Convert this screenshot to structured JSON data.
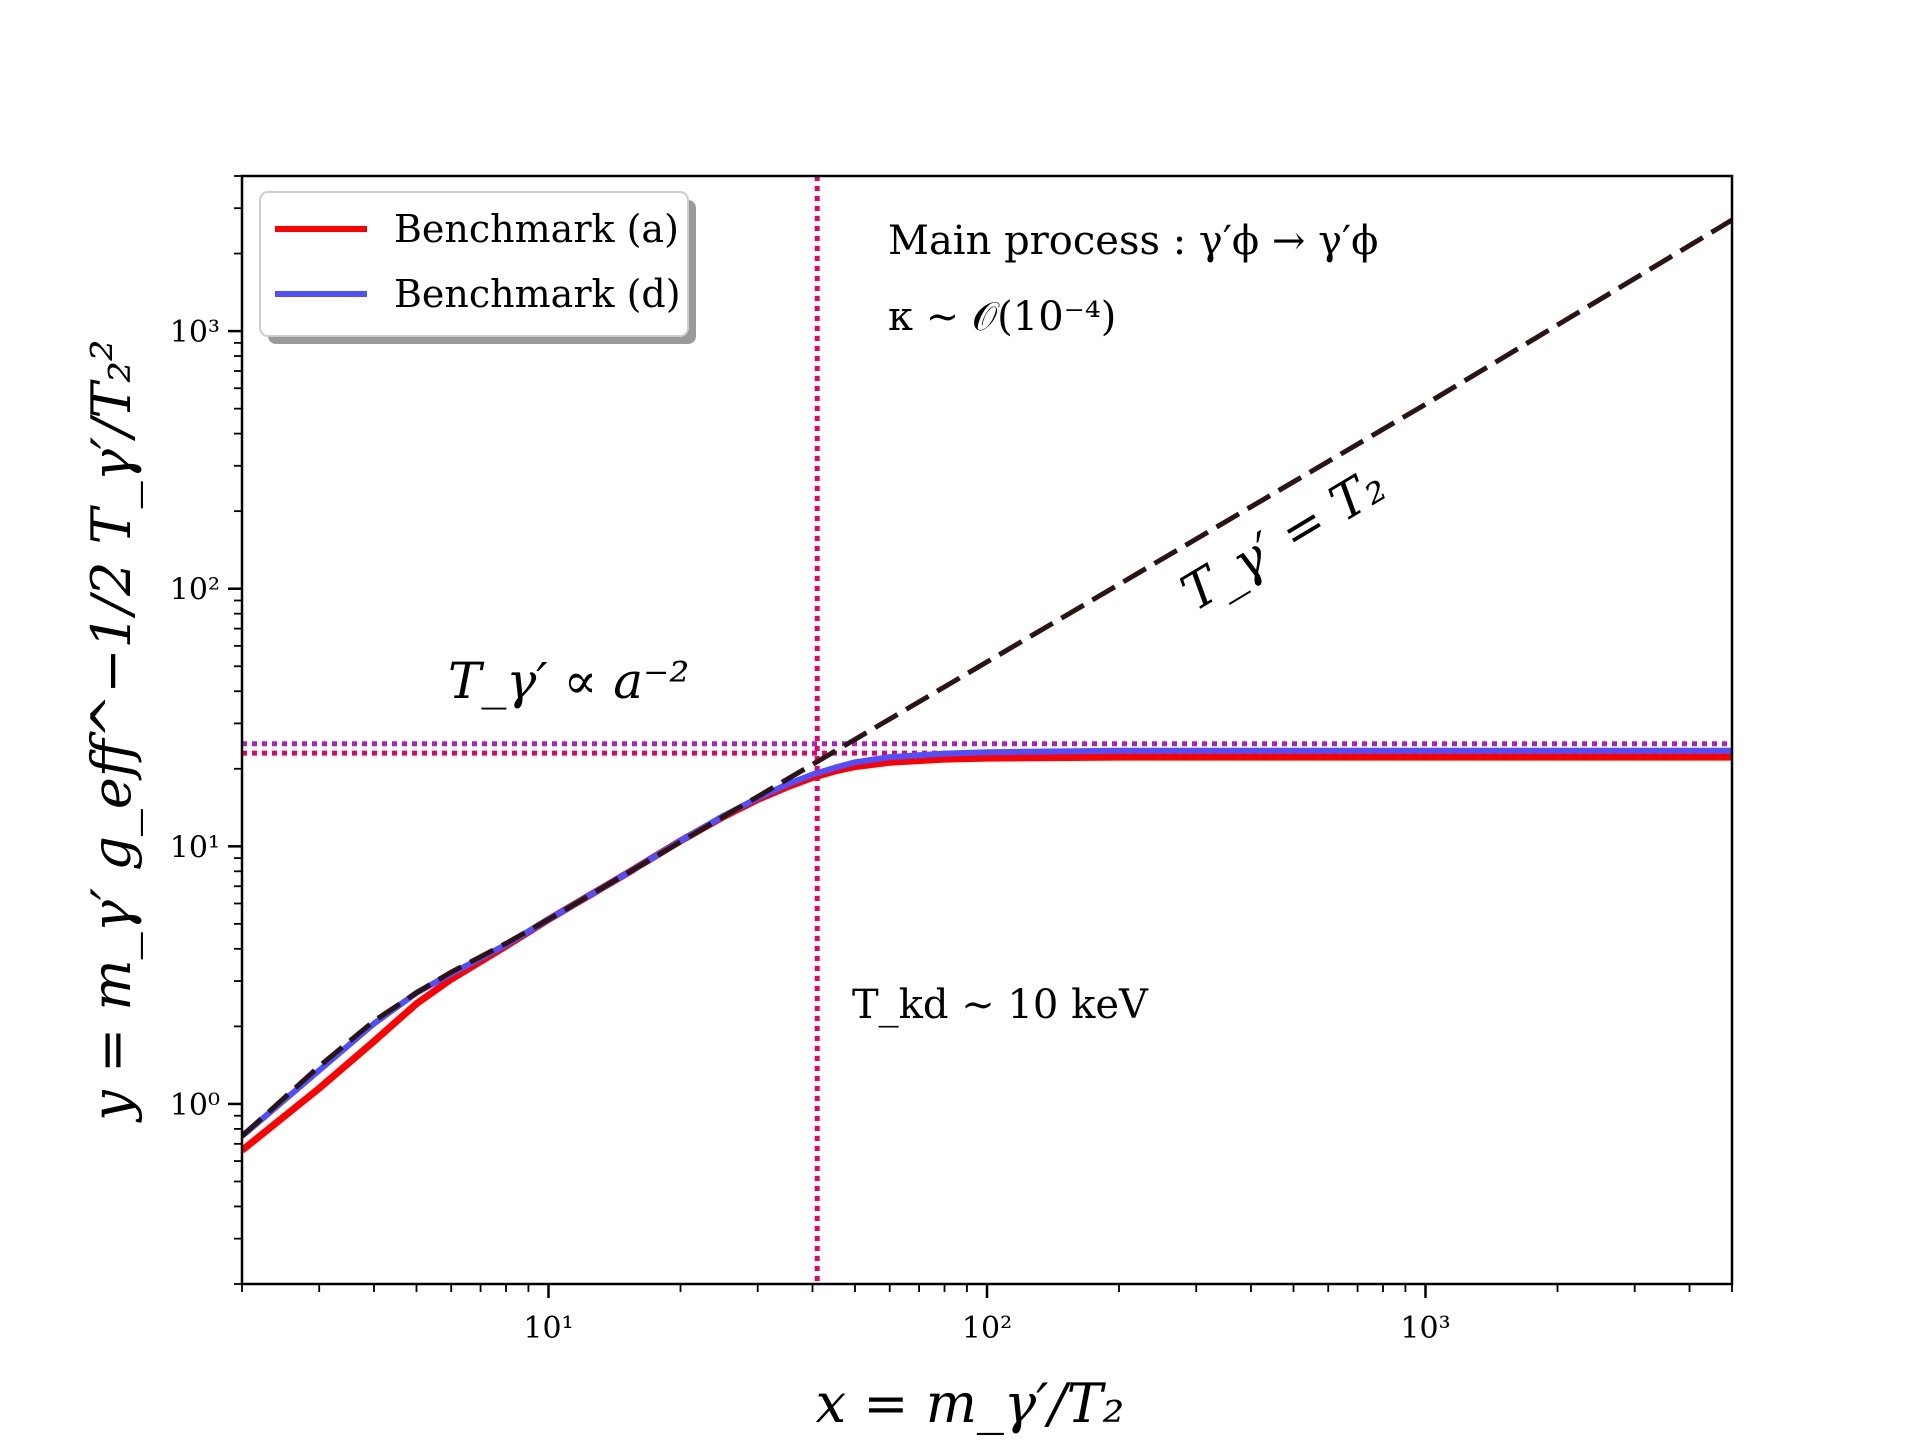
{
  "chart_data": {
    "type": "line",
    "x_scale": "log",
    "y_scale": "log",
    "xlim": [
      2,
      5000
    ],
    "ylim": [
      0.2,
      4000
    ],
    "xlabel": "x = m_γ′/T₂",
    "ylabel": "y = m_γ′ g_eff^−1/2 T_γ′/T₂²",
    "x_ticks": [
      {
        "value": 10,
        "label": "10¹"
      },
      {
        "value": 100,
        "label": "10²"
      },
      {
        "value": 1000,
        "label": "10³"
      }
    ],
    "y_ticks": [
      {
        "value": 1,
        "label": "10⁰"
      },
      {
        "value": 10,
        "label": "10¹"
      },
      {
        "value": 100,
        "label": "10²"
      },
      {
        "value": 1000,
        "label": "10³"
      }
    ],
    "legend": {
      "placement": "top-left",
      "entries": [
        "Benchmark (a)",
        "Benchmark (d)"
      ]
    },
    "series": [
      {
        "name": "Benchmark (a)",
        "color": "#ff0000",
        "style": "solid",
        "x": [
          2,
          3,
          4,
          5,
          6,
          8,
          10,
          15,
          20,
          25,
          30,
          35,
          40,
          45,
          50,
          60,
          80,
          100,
          200,
          500,
          1000,
          2000,
          5000
        ],
        "y": [
          0.66,
          1.15,
          1.75,
          2.45,
          3.05,
          4.1,
          5.2,
          7.8,
          10.5,
          13.0,
          15.2,
          17.0,
          18.5,
          19.6,
          20.4,
          21.2,
          21.8,
          22.0,
          22.2,
          22.2,
          22.2,
          22.2,
          22.2
        ]
      },
      {
        "name": "Benchmark (d)",
        "color": "#4f4fff",
        "style": "solid",
        "x": [
          2,
          3,
          4,
          5,
          6,
          8,
          10,
          15,
          20,
          25,
          30,
          35,
          40,
          45,
          50,
          60,
          80,
          100,
          200,
          500,
          1000,
          2000,
          5000
        ],
        "y": [
          0.75,
          1.35,
          2.05,
          2.7,
          3.2,
          4.15,
          5.2,
          7.8,
          10.5,
          13.1,
          15.4,
          17.4,
          19.0,
          20.2,
          21.2,
          22.2,
          22.9,
          23.2,
          23.5,
          23.5,
          23.5,
          23.5,
          23.5
        ]
      },
      {
        "name": "",
        "color": "#2a1414",
        "style": "dashed",
        "x": [
          2,
          3,
          4,
          5,
          6,
          8,
          10,
          15,
          20,
          30,
          40,
          100,
          1000,
          5000
        ],
        "y": [
          0.75,
          1.4,
          2.1,
          2.7,
          3.25,
          4.2,
          5.2,
          7.8,
          10.4,
          15.6,
          20.8,
          52,
          520,
          2700
        ]
      }
    ],
    "reference_lines": [
      {
        "orientation": "vertical",
        "value": 41,
        "color": "#e6006e"
      },
      {
        "orientation": "horizontal",
        "value": 25.0,
        "color": "#b01ecc"
      },
      {
        "orientation": "horizontal",
        "value": 23.0,
        "color": "#e6006e"
      }
    ],
    "annotations": {
      "proc_line1": "Main process : γ′ϕ → γ′ϕ",
      "proc_line2": "κ ∼ 𝒪(10⁻⁴)",
      "prop_label": "T_γ′ ∝ a⁻²",
      "eq_label": "T_γ′ = T₂",
      "tkd_label": "T_kd ∼ 10 keV",
      "tkd_color": "#00008b"
    }
  }
}
